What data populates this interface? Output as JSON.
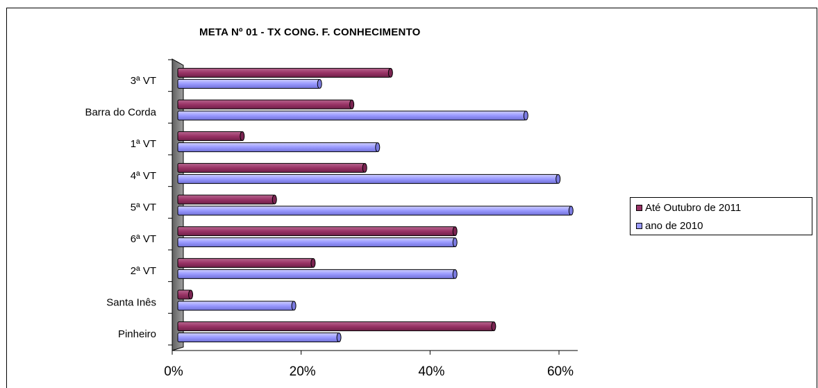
{
  "chart_data": {
    "type": "bar",
    "orientation": "horizontal",
    "title": "META Nº 01 - TX CONG. F. CONHECIMENTO",
    "categories": [
      "3ª VT",
      "Barra do Corda",
      "1ª VT",
      "4ª VT",
      "5ª VT",
      "6ª VT",
      "2ª VT",
      "Santa Inês",
      "Pinheiro"
    ],
    "series": [
      {
        "name": "Até Outubro  de 2011",
        "color": "#993366",
        "values": [
          33,
          27,
          10,
          29,
          15,
          43,
          21,
          2,
          49
        ]
      },
      {
        "name": "ano de 2010",
        "color": "#9999FF",
        "values": [
          22,
          54,
          31,
          59,
          61,
          43,
          43,
          18,
          25
        ]
      }
    ],
    "xlim": [
      0,
      60
    ],
    "x_ticks": [
      "0%",
      "20%",
      "40%",
      "60%"
    ],
    "x_tick_values": [
      0,
      20,
      40,
      60
    ],
    "legend_position": "right",
    "grid": false
  }
}
